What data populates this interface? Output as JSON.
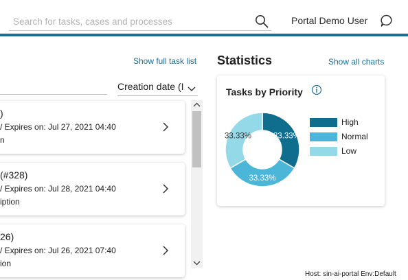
{
  "header": {
    "search_placeholder": "Search for tasks, cases and processes",
    "user_name": "Portal Demo User",
    "accent_color": "#1a6e95"
  },
  "task_list": {
    "show_full_label": "Show full task list",
    "sort_value": "Creation date (I",
    "tasks": [
      {
        "title": ")",
        "meta": "/ Expires on: Jul 27, 2021 04:40",
        "desc": "n"
      },
      {
        "title": "(#328)",
        "meta": "/ Expires on: Jul 28, 2021 04:40",
        "desc": "iption"
      },
      {
        "title": "26)",
        "meta": "/ Expires on: Jul 26, 2021 07:40",
        "desc": "ion"
      }
    ]
  },
  "statistics": {
    "title": "Statistics",
    "show_all_label": "Show all charts",
    "chart_title": "Tasks by Priority"
  },
  "chart_data": {
    "type": "pie",
    "title": "Tasks by Priority",
    "categories": [
      "High",
      "Normal",
      "Low"
    ],
    "values": [
      33.33,
      33.33,
      33.33
    ],
    "data_labels": [
      "33.33%",
      "33.33%",
      "33.33%"
    ],
    "colors": [
      "#0f6d8e",
      "#4bb6d8",
      "#93d9e8"
    ],
    "donut": true,
    "legend_position": "right"
  },
  "footer": {
    "host_info": "Host: sin-ai-portal Env:Default"
  }
}
